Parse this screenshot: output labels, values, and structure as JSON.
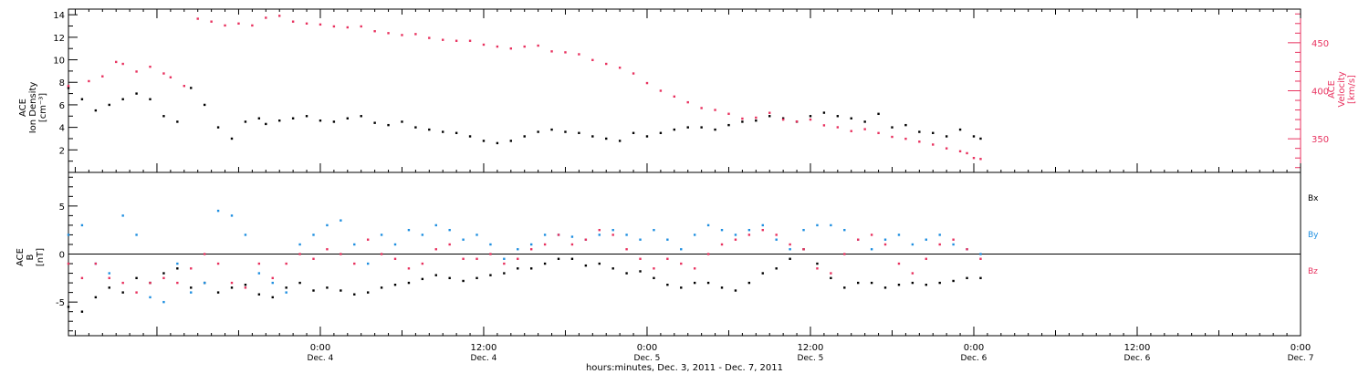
{
  "colors": {
    "density": "#000000",
    "velocity": "#e8325f",
    "bx": "#000000",
    "by": "#1f8fe0",
    "bz": "#e8325f",
    "axis": "#000000"
  },
  "chart_data": [
    {
      "type": "scatter",
      "panel": "ion-density-velocity",
      "xlabel": "hours:minutes, Dec.  3, 2011 - Dec.  7, 2011",
      "x_range_hours": [
        -18.5,
        72
      ],
      "x_ticks": [
        {
          "t": 0,
          "time": "0:00",
          "day": "Dec. 4"
        },
        {
          "t": 12,
          "time": "12:00",
          "day": "Dec. 4"
        },
        {
          "t": 24,
          "time": "0:00",
          "day": "Dec. 5"
        },
        {
          "t": 36,
          "time": "12:00",
          "day": "Dec. 5"
        },
        {
          "t": 48,
          "time": "0:00",
          "day": "Dec. 6"
        },
        {
          "t": 60,
          "time": "12:00",
          "day": "Dec. 6"
        },
        {
          "t": 72,
          "time": "0:00",
          "day": "Dec. 7"
        }
      ],
      "ylabel_left": [
        "ACE",
        "Ion Density",
        "[cm⁻³]"
      ],
      "ylim_left": [
        0,
        14.5
      ],
      "yticks_left": [
        2,
        4,
        6,
        8,
        10,
        12,
        14
      ],
      "ylabel_right": [
        "ACE",
        "Velocity",
        "[km/s]"
      ],
      "ylim_right": [
        315,
        485
      ],
      "yticks_right": [
        350,
        400,
        450
      ],
      "series": [
        {
          "name": "density",
          "axis": "left",
          "x": [
            -18.5,
            -17.5,
            -16.5,
            -15.5,
            -14.5,
            -13.5,
            -12.5,
            -11.5,
            -10.5,
            -9.5,
            -8.5,
            -7.5,
            -6.5,
            -5.5,
            -4.5,
            -4,
            -3,
            -2,
            -1,
            0,
            1,
            2,
            3,
            4,
            5,
            6,
            7,
            8,
            9,
            10,
            11,
            12,
            13,
            14,
            15,
            16,
            17,
            18,
            19,
            20,
            21,
            22,
            23,
            24,
            25,
            26,
            27,
            28,
            29,
            30,
            31,
            32,
            33,
            34,
            35,
            36,
            37,
            38,
            39,
            40,
            41,
            42,
            43,
            44,
            45,
            46,
            47,
            48,
            48.5
          ],
          "values": [
            7.5,
            6.5,
            5.5,
            6,
            6.5,
            7,
            6.5,
            5,
            4.5,
            7.5,
            6,
            4,
            3,
            4.5,
            4.8,
            4.3,
            4.6,
            4.8,
            5,
            4.6,
            4.5,
            4.8,
            5,
            4.4,
            4.2,
            4.5,
            4,
            3.8,
            3.6,
            3.5,
            3.2,
            2.8,
            2.6,
            2.8,
            3.2,
            3.6,
            3.8,
            3.6,
            3.5,
            3.2,
            3,
            2.8,
            3.5,
            3.2,
            3.5,
            3.8,
            4,
            4,
            3.8,
            4.2,
            4.5,
            4.6,
            5,
            4.8,
            4.5,
            5,
            5.3,
            5,
            4.8,
            4.5,
            5.2,
            4,
            4.2,
            3.6,
            3.5,
            3.2,
            3.8,
            3.2,
            3
          ]
        },
        {
          "name": "velocity",
          "axis": "right",
          "x": [
            -18.5,
            -17,
            -16,
            -15,
            -14.5,
            -13.5,
            -12.5,
            -11.5,
            -11,
            -10,
            -9,
            -8,
            -7,
            -6,
            -5,
            -4,
            -3,
            -2,
            -1,
            0,
            1,
            2,
            3,
            4,
            5,
            6,
            7,
            8,
            9,
            10,
            11,
            12,
            13,
            14,
            15,
            16,
            17,
            18,
            19,
            20,
            21,
            22,
            23,
            24,
            25,
            26,
            27,
            28,
            29,
            30,
            31,
            32,
            33,
            34,
            35,
            36,
            37,
            38,
            39,
            40,
            41,
            42,
            43,
            44,
            45,
            46,
            47,
            47.5,
            48,
            48.5
          ],
          "values": [
            405,
            410,
            415,
            430,
            428,
            420,
            425,
            418,
            414,
            405,
            475,
            472,
            468,
            470,
            468,
            476,
            478,
            472,
            470,
            469,
            467,
            466,
            467,
            462,
            460,
            458,
            459,
            455,
            453,
            452,
            452,
            448,
            446,
            444,
            446,
            447,
            441,
            440,
            438,
            432,
            428,
            424,
            418,
            408,
            400,
            394,
            388,
            382,
            380,
            376,
            371,
            372,
            377,
            370,
            368,
            370,
            364,
            362,
            358,
            360,
            356,
            352,
            350,
            347,
            344,
            340,
            337,
            335,
            330,
            329
          ]
        }
      ]
    },
    {
      "type": "scatter",
      "panel": "magnetic-field",
      "ylabel_left": [
        "ACE",
        "B",
        "[nT]"
      ],
      "ylim": [
        -8.5,
        8.5
      ],
      "yticks": [
        -5,
        0,
        5
      ],
      "zero_line": true,
      "legend": [
        "Bx",
        "By",
        "Bz"
      ],
      "legend_position": "right",
      "series": [
        {
          "name": "Bx",
          "x": [
            -18.5,
            -17.5,
            -16.5,
            -15.5,
            -14.5,
            -13.5,
            -12.5,
            -11.5,
            -10.5,
            -9.5,
            -8.5,
            -7.5,
            -6.5,
            -5.5,
            -4.5,
            -3.5,
            -2.5,
            -1.5,
            -0.5,
            0.5,
            1.5,
            2.5,
            3.5,
            4.5,
            5.5,
            6.5,
            7.5,
            8.5,
            9.5,
            10.5,
            11.5,
            12.5,
            13.5,
            14.5,
            15.5,
            16.5,
            17.5,
            18.5,
            19.5,
            20.5,
            21.5,
            22.5,
            23.5,
            24.5,
            25.5,
            26.5,
            27.5,
            28.5,
            29.5,
            30.5,
            31.5,
            32.5,
            33.5,
            34.5,
            35.5,
            36.5,
            37.5,
            38.5,
            39.5,
            40.5,
            41.5,
            42.5,
            43.5,
            44.5,
            45.5,
            46.5,
            47.5,
            48.5
          ],
          "values": [
            -5.5,
            -6,
            -4.5,
            -3.5,
            -4,
            -2.5,
            -3,
            -2,
            -1.5,
            -3.5,
            -3,
            -4,
            -3.5,
            -3.2,
            -4.2,
            -4.5,
            -3.5,
            -3,
            -3.8,
            -3.5,
            -3.8,
            -4.2,
            -4,
            -3.5,
            -3.2,
            -3,
            -2.6,
            -2.2,
            -2.5,
            -2.8,
            -2.5,
            -2.2,
            -2,
            -1.5,
            -1.5,
            -1,
            -0.5,
            -0.5,
            -1.2,
            -1,
            -1.5,
            -2,
            -1.8,
            -2.5,
            -3.2,
            -3.5,
            -3,
            -3,
            -3.5,
            -3.8,
            -3,
            -2,
            -1.5,
            -0.5,
            0.5,
            -1,
            -2.5,
            -3.5,
            -3,
            -3,
            -3.5,
            -3.2,
            -3,
            -3.2,
            -3,
            -2.8,
            -2.5,
            -2.5
          ]
        },
        {
          "name": "By",
          "x": [
            -18.5,
            -17.5,
            -16.5,
            -15.5,
            -14.5,
            -13.5,
            -12.5,
            -11.5,
            -10.5,
            -9.5,
            -8.5,
            -7.5,
            -6.5,
            -5.5,
            -4.5,
            -3.5,
            -2.5,
            -1.5,
            -0.5,
            0.5,
            1.5,
            2.5,
            3.5,
            4.5,
            5.5,
            6.5,
            7.5,
            8.5,
            9.5,
            10.5,
            11.5,
            12.5,
            13.5,
            14.5,
            15.5,
            16.5,
            17.5,
            18.5,
            19.5,
            20.5,
            21.5,
            22.5,
            23.5,
            24.5,
            25.5,
            26.5,
            27.5,
            28.5,
            29.5,
            30.5,
            31.5,
            32.5,
            33.5,
            34.5,
            35.5,
            36.5,
            37.5,
            38.5,
            39.5,
            40.5,
            41.5,
            42.5,
            43.5,
            44.5,
            45.5,
            46.5,
            47.5,
            48.5
          ],
          "values": [
            2,
            3,
            -1,
            -2,
            4,
            2,
            -4.5,
            -5,
            -1,
            -4,
            -3,
            4.5,
            4,
            2,
            -2,
            -3,
            -4,
            1,
            2,
            3,
            3.5,
            1,
            -1,
            2,
            1,
            2.5,
            2,
            3,
            2.5,
            1.5,
            2,
            1,
            -0.5,
            0.5,
            1,
            2,
            2,
            1.8,
            1.5,
            2,
            2.5,
            2,
            1.5,
            2.5,
            1.5,
            0.5,
            2,
            3,
            2.5,
            2,
            2.5,
            3,
            1.5,
            0.5,
            2.5,
            3,
            3,
            2.5,
            1.5,
            0.5,
            1.5,
            2,
            1,
            1.5,
            2,
            1,
            0.5,
            0
          ]
        },
        {
          "name": "Bz",
          "x": [
            -18.5,
            -17.5,
            -16.5,
            -15.5,
            -14.5,
            -13.5,
            -12.5,
            -11.5,
            -10.5,
            -9.5,
            -8.5,
            -7.5,
            -6.5,
            -5.5,
            -4.5,
            -3.5,
            -2.5,
            -1.5,
            -0.5,
            0.5,
            1.5,
            2.5,
            3.5,
            4.5,
            5.5,
            6.5,
            7.5,
            8.5,
            9.5,
            10.5,
            11.5,
            12.5,
            13.5,
            14.5,
            15.5,
            16.5,
            17.5,
            18.5,
            19.5,
            20.5,
            21.5,
            22.5,
            23.5,
            24.5,
            25.5,
            26.5,
            27.5,
            28.5,
            29.5,
            30.5,
            31.5,
            32.5,
            33.5,
            34.5,
            35.5,
            36.5,
            37.5,
            38.5,
            39.5,
            40.5,
            41.5,
            42.5,
            43.5,
            44.5,
            45.5,
            46.5,
            47.5,
            48.5
          ],
          "values": [
            -1,
            -2.5,
            -1,
            -2.5,
            -3,
            -4,
            -3,
            -2.5,
            -3,
            -1.5,
            0,
            -1,
            -3,
            -3.5,
            -1,
            -2.5,
            -1,
            0,
            -0.5,
            0.5,
            0,
            -1,
            1.5,
            0,
            -0.5,
            -1.5,
            -1,
            0.5,
            1,
            -0.5,
            -0.5,
            0,
            -1,
            -0.5,
            0.5,
            1,
            2,
            1,
            1.5,
            2.5,
            2,
            0.5,
            -0.5,
            -1.5,
            -0.5,
            -1,
            -1.5,
            0,
            1,
            1.5,
            2,
            2.5,
            2,
            1,
            0.5,
            -1.5,
            -2,
            0,
            1.5,
            2,
            1,
            -1,
            -2,
            -0.5,
            1,
            1.5,
            0.5,
            -0.5
          ]
        }
      ]
    }
  ]
}
